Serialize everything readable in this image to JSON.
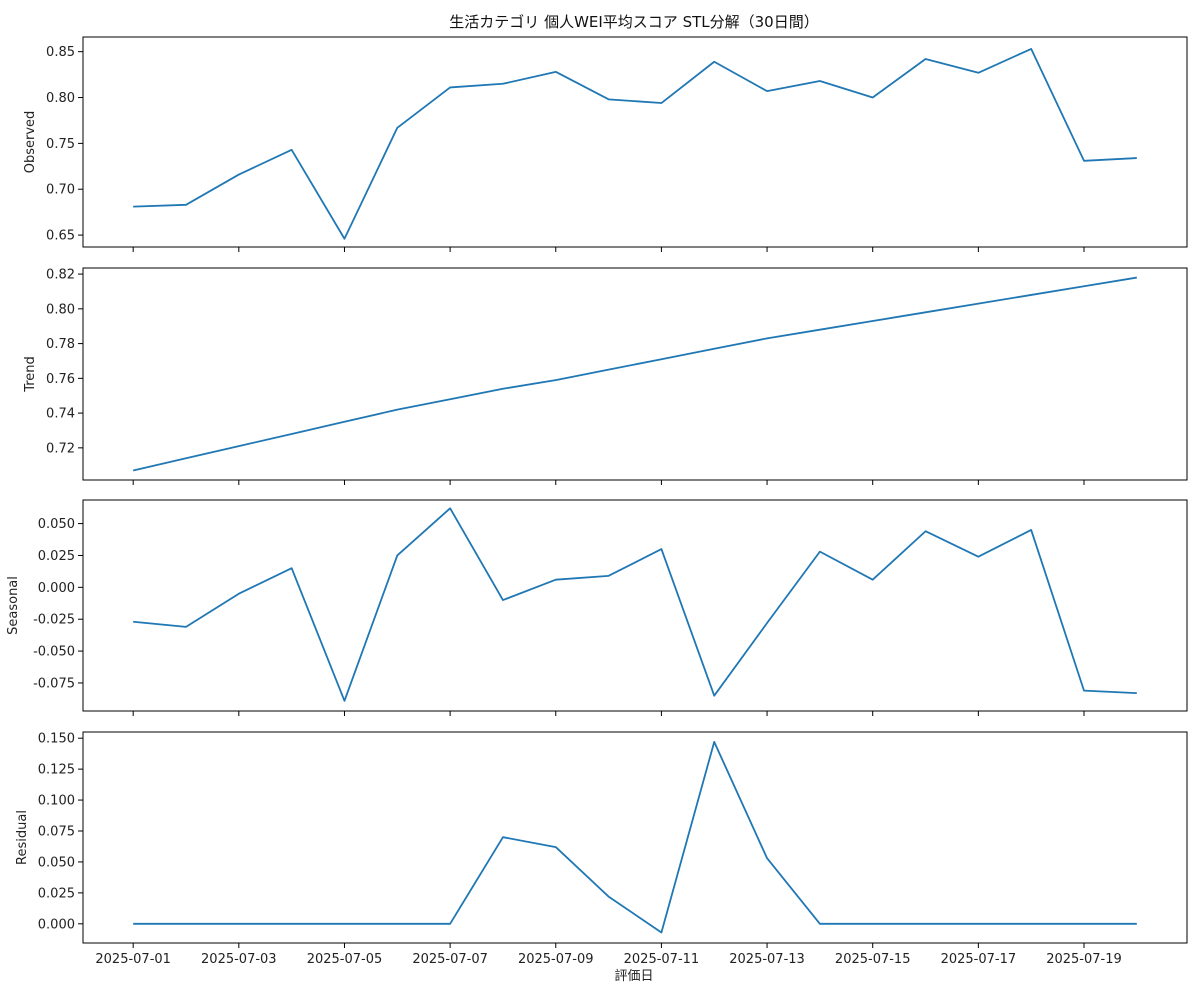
{
  "chart_data": {
    "type": "line",
    "title": "生活カテゴリ 個人WEI平均スコア STL分解（30日間）",
    "xlabel": "評価日",
    "x": [
      "2025-07-01",
      "2025-07-02",
      "2025-07-03",
      "2025-07-04",
      "2025-07-05",
      "2025-07-06",
      "2025-07-07",
      "2025-07-08",
      "2025-07-09",
      "2025-07-10",
      "2025-07-11",
      "2025-07-12",
      "2025-07-13",
      "2025-07-14",
      "2025-07-15",
      "2025-07-16",
      "2025-07-17",
      "2025-07-18",
      "2025-07-19",
      "2025-07-20"
    ],
    "x_ticks": [
      "2025-07-01",
      "2025-07-03",
      "2025-07-05",
      "2025-07-07",
      "2025-07-09",
      "2025-07-11",
      "2025-07-13",
      "2025-07-15",
      "2025-07-17",
      "2025-07-19"
    ],
    "line_color": "#1f77b4",
    "grid": false,
    "series": [
      {
        "name": "Observed",
        "ylabel": "Observed",
        "ylim": [
          0.637,
          0.866
        ],
        "yticks": [
          0.65,
          0.7,
          0.75,
          0.8,
          0.85
        ],
        "tick_decimals": 2,
        "values": [
          0.681,
          0.683,
          0.716,
          0.743,
          0.646,
          0.767,
          0.811,
          0.815,
          0.828,
          0.798,
          0.794,
          0.839,
          0.807,
          0.818,
          0.8,
          0.842,
          0.827,
          0.853,
          0.731,
          0.734
        ]
      },
      {
        "name": "Trend",
        "ylabel": "Trend",
        "ylim": [
          0.7015,
          0.8235
        ],
        "yticks": [
          0.72,
          0.74,
          0.76,
          0.78,
          0.8,
          0.82
        ],
        "tick_decimals": 2,
        "values": [
          0.707,
          0.714,
          0.721,
          0.728,
          0.735,
          0.742,
          0.748,
          0.754,
          0.759,
          0.765,
          0.771,
          0.777,
          0.783,
          0.788,
          0.793,
          0.798,
          0.803,
          0.808,
          0.813,
          0.818
        ]
      },
      {
        "name": "Seasonal",
        "ylabel": "Seasonal",
        "ylim": [
          -0.097,
          0.0685
        ],
        "yticks": [
          -0.075,
          -0.05,
          -0.025,
          0.0,
          0.025,
          0.05
        ],
        "tick_decimals": 3,
        "values": [
          -0.027,
          -0.031,
          -0.005,
          0.015,
          -0.089,
          0.025,
          0.062,
          -0.01,
          0.006,
          0.009,
          0.03,
          -0.085,
          -0.028,
          0.028,
          0.006,
          0.044,
          0.024,
          0.045,
          -0.081,
          -0.083
        ]
      },
      {
        "name": "Residual",
        "ylabel": "Residual",
        "ylim": [
          -0.0155,
          0.155
        ],
        "yticks": [
          0.0,
          0.025,
          0.05,
          0.075,
          0.1,
          0.125,
          0.15
        ],
        "tick_decimals": 3,
        "values": [
          0.0,
          0.0,
          0.0,
          0.0,
          0.0,
          0.0,
          0.0,
          0.07,
          0.062,
          0.022,
          -0.007,
          0.147,
          0.053,
          0.0,
          0.0,
          0.0,
          0.0,
          0.0,
          0.0,
          0.0
        ]
      }
    ]
  }
}
